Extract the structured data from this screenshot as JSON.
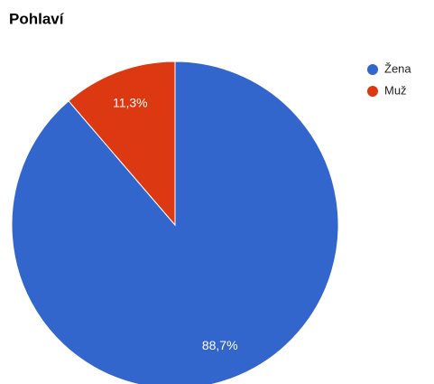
{
  "chart_data": {
    "type": "pie",
    "title": "Pohlaví",
    "categories": [
      "Žena",
      "Muž"
    ],
    "values": [
      88.7,
      11.3
    ],
    "value_labels": [
      "88,7%",
      "11,3%"
    ],
    "colors": [
      "#3366cc",
      "#dc3912"
    ],
    "legend": "right"
  }
}
